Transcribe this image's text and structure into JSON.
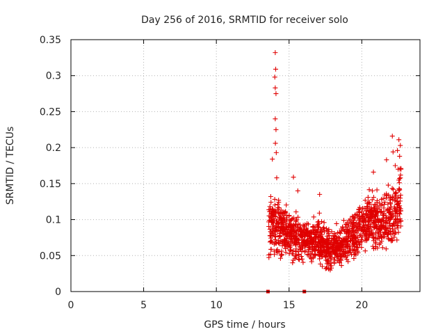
{
  "chart_data": {
    "type": "scatter",
    "title": "Day 256 of 2016, SRMTID for receiver solo",
    "xlabel": "GPS time / hours",
    "ylabel": "SRMTID / TECUs",
    "xlim": [
      0,
      24
    ],
    "ylim": [
      0,
      0.35
    ],
    "xticks": [
      0,
      5,
      10,
      15,
      20
    ],
    "yticks": [
      0,
      0.05,
      0.1,
      0.15,
      0.2,
      0.25,
      0.3,
      0.35
    ],
    "xtick_labels": [
      "0",
      "5",
      "10",
      "15",
      "20"
    ],
    "ytick_labels": [
      "0",
      "0.05",
      "0.1",
      "0.15",
      "0.2",
      "0.25",
      "0.3",
      "0.35"
    ],
    "grid": true,
    "marker": "+",
    "series_color": "#e00000",
    "zero_markers_x": [
      13.55,
      16.05
    ],
    "spike_points": [
      {
        "x": 14.05,
        "y": 0.332
      },
      {
        "x": 14.08,
        "y": 0.309
      },
      {
        "x": 14.02,
        "y": 0.298
      },
      {
        "x": 14.05,
        "y": 0.283
      },
      {
        "x": 14.1,
        "y": 0.275
      },
      {
        "x": 14.05,
        "y": 0.24
      },
      {
        "x": 14.1,
        "y": 0.225
      },
      {
        "x": 14.06,
        "y": 0.206
      },
      {
        "x": 14.12,
        "y": 0.193
      },
      {
        "x": 13.85,
        "y": 0.184
      },
      {
        "x": 14.15,
        "y": 0.158
      },
      {
        "x": 15.3,
        "y": 0.159
      },
      {
        "x": 22.1,
        "y": 0.216
      },
      {
        "x": 22.55,
        "y": 0.211
      },
      {
        "x": 22.65,
        "y": 0.203
      },
      {
        "x": 22.45,
        "y": 0.196
      },
      {
        "x": 22.15,
        "y": 0.194
      },
      {
        "x": 22.6,
        "y": 0.188
      },
      {
        "x": 21.7,
        "y": 0.183
      },
      {
        "x": 22.3,
        "y": 0.175
      },
      {
        "x": 20.8,
        "y": 0.166
      },
      {
        "x": 22.5,
        "y": 0.17
      },
      {
        "x": 17.1,
        "y": 0.135
      },
      {
        "x": 15.6,
        "y": 0.14
      }
    ],
    "envelope": [
      {
        "x": 13.6,
        "low": 0.035,
        "high": 0.145
      },
      {
        "x": 14.2,
        "low": 0.04,
        "high": 0.14
      },
      {
        "x": 14.8,
        "low": 0.035,
        "high": 0.12
      },
      {
        "x": 15.5,
        "low": 0.035,
        "high": 0.115
      },
      {
        "x": 16.2,
        "low": 0.04,
        "high": 0.1
      },
      {
        "x": 17.0,
        "low": 0.035,
        "high": 0.11
      },
      {
        "x": 17.8,
        "low": 0.025,
        "high": 0.09
      },
      {
        "x": 18.5,
        "low": 0.03,
        "high": 0.095
      },
      {
        "x": 19.2,
        "low": 0.04,
        "high": 0.11
      },
      {
        "x": 20.0,
        "low": 0.05,
        "high": 0.135
      },
      {
        "x": 20.8,
        "low": 0.055,
        "high": 0.145
      },
      {
        "x": 21.5,
        "low": 0.05,
        "high": 0.14
      },
      {
        "x": 22.2,
        "low": 0.06,
        "high": 0.16
      },
      {
        "x": 22.7,
        "low": 0.07,
        "high": 0.19
      }
    ],
    "point_count": 1400
  }
}
